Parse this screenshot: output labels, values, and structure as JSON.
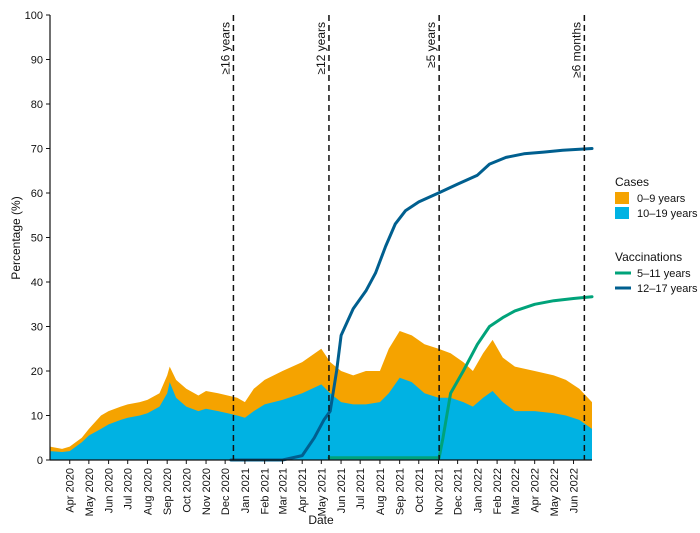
{
  "chart_data": {
    "type": "area",
    "xlabel": "Date",
    "ylabel": "Percentage (%)",
    "ylim": [
      0,
      100
    ],
    "yticks": [
      0,
      10,
      20,
      30,
      40,
      50,
      60,
      70,
      80,
      90,
      100
    ],
    "x_start": "2020-03-01",
    "x_end": "2022-06-30",
    "x_ticks": [
      "Apr 2020",
      "May 2020",
      "Jun 2020",
      "Jul 2020",
      "Aug 2020",
      "Sep 2020",
      "Oct 2020",
      "Nov 2020",
      "Dec 2020",
      "Jan 2021",
      "Feb 2021",
      "Mar 2021",
      "Apr 2021",
      "May 2021",
      "Jun 2021",
      "Jul 2021",
      "Aug 2021",
      "Sep 2021",
      "Oct 2021",
      "Nov 2021",
      "Dec 2021",
      "Jan 2022",
      "Feb 2022",
      "Mar 2022",
      "Apr 2022",
      "May 2022",
      "Jun 2022"
    ],
    "legend_groups": [
      {
        "title": "Cases",
        "entries": [
          {
            "label": "0–9 years",
            "color": "#F5A300",
            "kind": "area"
          },
          {
            "label": "10–19 years",
            "color": "#00B2E3",
            "kind": "area"
          }
        ]
      },
      {
        "title": "Vaccinations",
        "entries": [
          {
            "label": "5–11 years",
            "color": "#00A37A",
            "kind": "line"
          },
          {
            "label": "12–17 years",
            "color": "#005F8F",
            "kind": "line"
          }
        ]
      }
    ],
    "annotations": [
      {
        "label": "≥16 years",
        "date": "2020-12-14"
      },
      {
        "label": "≥12 years",
        "date": "2021-05-13"
      },
      {
        "label": "≥5 years",
        "date": "2021-11-02"
      },
      {
        "label": "≥6 months",
        "date": "2022-06-18"
      }
    ],
    "series": [
      {
        "name": "0–9 years",
        "kind": "stacked_area_total",
        "points": [
          [
            "2020-03-01",
            3
          ],
          [
            "2020-03-20",
            2.5
          ],
          [
            "2020-04-01",
            3
          ],
          [
            "2020-04-20",
            5
          ],
          [
            "2020-05-01",
            7
          ],
          [
            "2020-05-20",
            10
          ],
          [
            "2020-06-01",
            11
          ],
          [
            "2020-06-20",
            12
          ],
          [
            "2020-07-01",
            12.5
          ],
          [
            "2020-07-20",
            13
          ],
          [
            "2020-08-01",
            13.5
          ],
          [
            "2020-08-20",
            15
          ],
          [
            "2020-09-01",
            19
          ],
          [
            "2020-09-05",
            21
          ],
          [
            "2020-09-15",
            18
          ],
          [
            "2020-10-01",
            16
          ],
          [
            "2020-10-20",
            14.5
          ],
          [
            "2020-11-01",
            15.5
          ],
          [
            "2020-11-20",
            15
          ],
          [
            "2020-12-05",
            14.5
          ],
          [
            "2020-12-20",
            14
          ],
          [
            "2021-01-01",
            13
          ],
          [
            "2021-01-15",
            16
          ],
          [
            "2021-02-01",
            18
          ],
          [
            "2021-03-01",
            20
          ],
          [
            "2021-04-01",
            22
          ],
          [
            "2021-05-01",
            25
          ],
          [
            "2021-05-15",
            22
          ],
          [
            "2021-06-01",
            20
          ],
          [
            "2021-06-20",
            19
          ],
          [
            "2021-07-10",
            20
          ],
          [
            "2021-08-01",
            20
          ],
          [
            "2021-08-15",
            25
          ],
          [
            "2021-09-01",
            29
          ],
          [
            "2021-09-20",
            28
          ],
          [
            "2021-10-10",
            26
          ],
          [
            "2021-11-01",
            25
          ],
          [
            "2021-11-20",
            24
          ],
          [
            "2021-12-10",
            22
          ],
          [
            "2021-12-25",
            20
          ],
          [
            "2022-01-10",
            24
          ],
          [
            "2022-01-25",
            27
          ],
          [
            "2022-02-10",
            23
          ],
          [
            "2022-03-01",
            21
          ],
          [
            "2022-04-01",
            20
          ],
          [
            "2022-05-01",
            19
          ],
          [
            "2022-05-20",
            18
          ],
          [
            "2022-06-10",
            16
          ],
          [
            "2022-06-30",
            13
          ]
        ]
      },
      {
        "name": "10–19 years",
        "kind": "stacked_area_base",
        "points": [
          [
            "2020-03-01",
            2
          ],
          [
            "2020-03-20",
            1.8
          ],
          [
            "2020-04-01",
            2
          ],
          [
            "2020-04-20",
            4
          ],
          [
            "2020-05-01",
            5.5
          ],
          [
            "2020-05-20",
            7
          ],
          [
            "2020-06-01",
            8
          ],
          [
            "2020-06-20",
            9
          ],
          [
            "2020-07-01",
            9.5
          ],
          [
            "2020-07-20",
            10
          ],
          [
            "2020-08-01",
            10.5
          ],
          [
            "2020-08-20",
            12
          ],
          [
            "2020-09-01",
            15
          ],
          [
            "2020-09-05",
            17.5
          ],
          [
            "2020-09-15",
            14
          ],
          [
            "2020-10-01",
            12
          ],
          [
            "2020-10-20",
            11
          ],
          [
            "2020-11-01",
            11.5
          ],
          [
            "2020-11-20",
            11
          ],
          [
            "2020-12-05",
            10.5
          ],
          [
            "2020-12-20",
            10
          ],
          [
            "2021-01-01",
            9.5
          ],
          [
            "2021-01-15",
            11
          ],
          [
            "2021-02-01",
            12.5
          ],
          [
            "2021-03-01",
            13.5
          ],
          [
            "2021-04-01",
            15
          ],
          [
            "2021-05-01",
            17
          ],
          [
            "2021-05-15",
            15
          ],
          [
            "2021-06-01",
            13
          ],
          [
            "2021-06-20",
            12.5
          ],
          [
            "2021-07-10",
            12.5
          ],
          [
            "2021-08-01",
            13
          ],
          [
            "2021-08-15",
            15
          ],
          [
            "2021-09-01",
            18.5
          ],
          [
            "2021-09-20",
            17.5
          ],
          [
            "2021-10-10",
            15
          ],
          [
            "2021-11-01",
            14
          ],
          [
            "2021-11-20",
            14
          ],
          [
            "2021-12-10",
            13
          ],
          [
            "2021-12-25",
            12
          ],
          [
            "2022-01-10",
            14
          ],
          [
            "2022-01-25",
            15.5
          ],
          [
            "2022-02-10",
            13
          ],
          [
            "2022-03-01",
            11
          ],
          [
            "2022-04-01",
            11
          ],
          [
            "2022-05-01",
            10.5
          ],
          [
            "2022-05-20",
            10
          ],
          [
            "2022-06-10",
            9
          ],
          [
            "2022-06-30",
            7
          ]
        ]
      },
      {
        "name": "12–17 years",
        "kind": "line",
        "points": [
          [
            "2020-12-10",
            0
          ],
          [
            "2021-03-01",
            0
          ],
          [
            "2021-04-01",
            1
          ],
          [
            "2021-04-20",
            5
          ],
          [
            "2021-05-05",
            9
          ],
          [
            "2021-05-15",
            11
          ],
          [
            "2021-05-25",
            20
          ],
          [
            "2021-06-01",
            28
          ],
          [
            "2021-06-20",
            34
          ],
          [
            "2021-07-10",
            38
          ],
          [
            "2021-07-25",
            42
          ],
          [
            "2021-08-10",
            48
          ],
          [
            "2021-08-25",
            53
          ],
          [
            "2021-09-10",
            56
          ],
          [
            "2021-10-01",
            58
          ],
          [
            "2021-11-01",
            60
          ],
          [
            "2021-12-01",
            62
          ],
          [
            "2022-01-01",
            64
          ],
          [
            "2022-01-20",
            66.5
          ],
          [
            "2022-02-15",
            68
          ],
          [
            "2022-03-15",
            68.8
          ],
          [
            "2022-04-15",
            69.2
          ],
          [
            "2022-05-15",
            69.6
          ],
          [
            "2022-06-30",
            70
          ]
        ]
      },
      {
        "name": "5–11 years",
        "kind": "line",
        "points": [
          [
            "2021-05-13",
            0.5
          ],
          [
            "2021-11-02",
            0.5
          ],
          [
            "2021-11-08",
            5
          ],
          [
            "2021-11-20",
            15
          ],
          [
            "2021-12-10",
            20
          ],
          [
            "2022-01-01",
            26
          ],
          [
            "2022-01-20",
            30
          ],
          [
            "2022-02-10",
            32
          ],
          [
            "2022-03-01",
            33.5
          ],
          [
            "2022-04-01",
            35
          ],
          [
            "2022-05-01",
            35.8
          ],
          [
            "2022-06-01",
            36.3
          ],
          [
            "2022-06-30",
            36.7
          ]
        ]
      }
    ]
  }
}
